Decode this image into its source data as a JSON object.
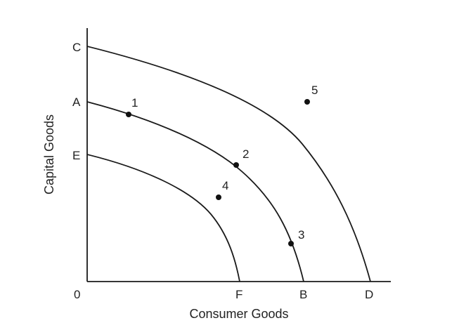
{
  "diagram": {
    "axes": {
      "x_title": "Consumer Goods",
      "y_title": "Capital Goods",
      "origin_label": "0"
    },
    "curves": [
      {
        "name": "curve-cd",
        "y_intercept_label": "C",
        "x_intercept_label": "D"
      },
      {
        "name": "curve-ab",
        "y_intercept_label": "A",
        "x_intercept_label": "B"
      },
      {
        "name": "curve-ef",
        "y_intercept_label": "E",
        "x_intercept_label": "F"
      }
    ],
    "points": [
      {
        "label": "1"
      },
      {
        "label": "2"
      },
      {
        "label": "3"
      },
      {
        "label": "4"
      },
      {
        "label": "5"
      }
    ]
  },
  "colors": {
    "line": "#1a1a1a",
    "text": "#222222",
    "background": "#ffffff"
  }
}
